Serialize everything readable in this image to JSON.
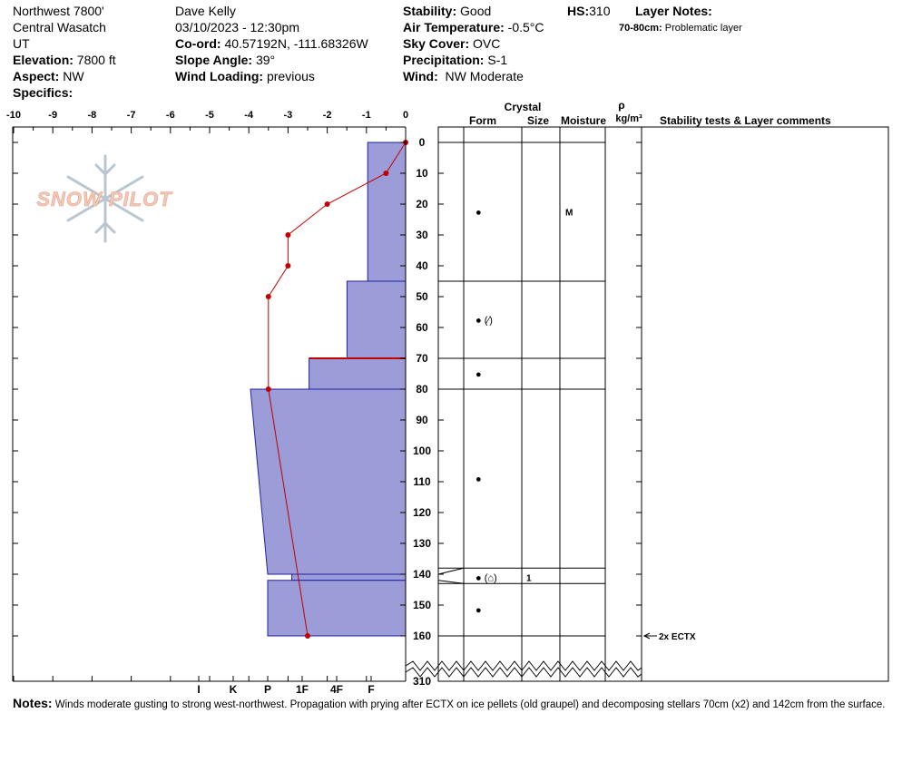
{
  "header": {
    "location": "Northwest 7800'",
    "range": "Central Wasatch",
    "state": "UT",
    "elevation_label": "Elevation:",
    "elevation": "7800 ft",
    "aspect_label": "Aspect:",
    "aspect": "NW",
    "specifics_label": "Specifics:",
    "observer": "Dave Kelly",
    "datetime": "03/10/2023 - 12:30pm",
    "coord_label": "Co-ord:",
    "coord": "40.57192N, -111.68326W",
    "slope_label": "Slope Angle:",
    "slope": "39°",
    "wind_loading_label": "Wind Loading:",
    "wind_loading": "previous",
    "stability_label": "Stability:",
    "stability": "Good",
    "air_temp_label": "Air Temperature:",
    "air_temp": "-0.5°C",
    "sky_label": "Sky Cover:",
    "sky": "OVC",
    "precip_label": "Precipitation:",
    "precip": "S-1",
    "wind_label": "Wind:",
    "wind": "NW Moderate",
    "hs_label": "HS:",
    "hs": "310",
    "layer_notes_label": "Layer Notes:",
    "layer_note_range": "70-80cm:",
    "layer_note_text": "Problematic layer"
  },
  "logo_text": "SNOW PILOT",
  "axes": {
    "temp_ticks": [
      "-10",
      "-9",
      "-8",
      "-7",
      "-6",
      "-5",
      "-4",
      "-3",
      "-2",
      "-1",
      "0"
    ],
    "depth_ticks": [
      "0",
      "10",
      "20",
      "30",
      "40",
      "50",
      "60",
      "70",
      "80",
      "90",
      "100",
      "110",
      "120",
      "130",
      "140",
      "150",
      "160"
    ],
    "depth_bottom": "310",
    "hardness_ticks": [
      "I",
      "K",
      "P",
      "1F",
      "4F",
      "F"
    ]
  },
  "columns": {
    "crystal": "Crystal",
    "form": "Form",
    "size": "Size",
    "moisture": "Moisture",
    "rho": "ρ",
    "rho_unit": "kg/m³",
    "stability": "Stability tests & Layer comments"
  },
  "chart_data": {
    "type": "snow_profile",
    "temp_axis": {
      "min": -10,
      "max": 0,
      "unit": "°C"
    },
    "depth_axis": {
      "min": 0,
      "max": 160,
      "bottom_label": 310,
      "unit": "cm"
    },
    "hardness_scale": [
      "F",
      "4F",
      "1F",
      "P",
      "K",
      "I"
    ],
    "hardness_profile": [
      {
        "top": 0,
        "bottom": 45,
        "hardness": 1.1
      },
      {
        "top": 45,
        "bottom": 70,
        "hardness": 1.7
      },
      {
        "top": 70,
        "bottom": 80,
        "hardness": 2.8
      },
      {
        "top": 80,
        "bottom": 140,
        "hardness_top": 4.5,
        "hardness_bottom": 4.0
      },
      {
        "top": 140,
        "bottom": 142,
        "hardness": 3.3
      },
      {
        "top": 142,
        "bottom": 160,
        "hardness": 4.0
      }
    ],
    "weak_layer_depth": 70,
    "temperature_profile": [
      {
        "depth": 0,
        "temp": 0
      },
      {
        "depth": 10,
        "temp": -0.5
      },
      {
        "depth": 20,
        "temp": -2
      },
      {
        "depth": 30,
        "temp": -3
      },
      {
        "depth": 40,
        "temp": -3
      },
      {
        "depth": 50,
        "temp": -3.5
      },
      {
        "depth": 80,
        "temp": -3.5
      },
      {
        "depth": 160,
        "temp": -2.5
      }
    ],
    "layer_boundaries": [
      0,
      45,
      70,
      80,
      138,
      143,
      160
    ],
    "layers": [
      {
        "depth": 22.5,
        "form": "●",
        "size": "",
        "moisture": "M"
      },
      {
        "depth": 57.5,
        "form": "● (⁄)",
        "size": "",
        "moisture": ""
      },
      {
        "depth": 75,
        "form": "●",
        "size": "",
        "moisture": ""
      },
      {
        "depth": 109,
        "form": "●",
        "size": "",
        "moisture": ""
      },
      {
        "depth": 141,
        "form": "● (⌂)",
        "size": "1",
        "moisture": ""
      },
      {
        "depth": 151.5,
        "form": "●",
        "size": "",
        "moisture": ""
      }
    ],
    "stability_tests": [
      {
        "depth": 160,
        "text": "2x ECTX"
      }
    ]
  },
  "notes": {
    "label": "Notes:",
    "text": "Winds moderate gusting to strong west-northwest. Propagation with prying after ECTX on ice pellets (old graupel) and decomposing stellars 70cm (x2) and 142cm from the surface."
  },
  "colors": {
    "hardness_fill": "#9c9cd8",
    "hardness_stroke": "#2020a0",
    "temp_line": "#c00000",
    "logo_fill": "#f2c9b8",
    "logo_flake": "#b9c6d1"
  }
}
